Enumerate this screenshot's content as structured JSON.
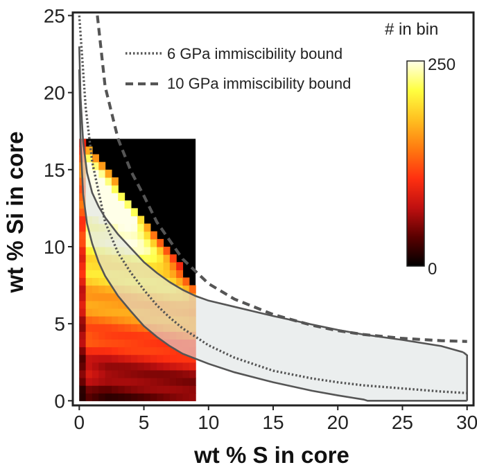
{
  "chart_data": {
    "type": "heatmap",
    "xlabel": "wt % S in core",
    "ylabel": "wt % Si in core",
    "xlim": [
      -0.5,
      30.5
    ],
    "ylim": [
      -0.3,
      25.2
    ],
    "xticks": [
      0,
      5,
      10,
      15,
      20,
      25,
      30
    ],
    "yticks": [
      0,
      5,
      10,
      15,
      20,
      25
    ],
    "heatmap": {
      "x_range": [
        0,
        9
      ],
      "y_range": [
        0,
        17
      ],
      "bin_width": 0.5,
      "bin_height": 0.5,
      "peak_location": {
        "s": 5.0,
        "si": 14.0
      },
      "colorbar": {
        "label": "# in bin",
        "min": 0,
        "max": 250,
        "min_label": "0",
        "max_label": "250",
        "colormap": [
          "#000000",
          "#5a0000",
          "#c01010",
          "#ff3010",
          "#ff7a10",
          "#ffc020",
          "#ffff40",
          "#ffffe8"
        ]
      }
    },
    "series": [
      {
        "name": "6 GPa immiscibility bound",
        "style": "dotted",
        "color": "#555555",
        "x": [
          0,
          0.5,
          1,
          2,
          3,
          4,
          5,
          6,
          7,
          8,
          10,
          12,
          15,
          18,
          20,
          22,
          25,
          28,
          30
        ],
        "y": [
          25,
          19,
          15.5,
          11.6,
          9.6,
          8.3,
          7.2,
          6.2,
          5.4,
          4.7,
          3.6,
          2.8,
          1.95,
          1.45,
          1.2,
          1.0,
          0.8,
          0.6,
          0.5
        ]
      },
      {
        "name": "10 GPa immiscibility bound",
        "style": "dashed",
        "color": "#555555",
        "x": [
          1.4,
          2,
          3,
          4,
          5,
          6,
          8,
          10,
          12,
          15,
          18,
          20,
          22,
          25,
          28,
          30
        ],
        "y": [
          25,
          20.4,
          17.0,
          14.9,
          13.3,
          11.6,
          9.2,
          7.6,
          6.6,
          5.6,
          4.9,
          4.55,
          4.3,
          4.05,
          3.9,
          3.85
        ]
      }
    ],
    "shaded_region": {
      "name": "overlap region",
      "fill": "#dde2e2",
      "upper": {
        "x": [
          0,
          0.1,
          0.3,
          0.6,
          1,
          1.5,
          2,
          3,
          4,
          5,
          6,
          7,
          8,
          9,
          10,
          12,
          15,
          18,
          20,
          22,
          25,
          28,
          29.7
        ],
        "y": [
          23.0,
          19.7,
          16.8,
          14.8,
          13.5,
          12.6,
          11.9,
          10.8,
          9.9,
          9.0,
          8.3,
          7.7,
          7.2,
          6.8,
          6.5,
          6.1,
          5.5,
          4.95,
          4.6,
          4.3,
          3.95,
          3.55,
          3.15
        ]
      },
      "lower": {
        "x": [
          0,
          0.1,
          0.3,
          0.6,
          1,
          1.5,
          2,
          3,
          4,
          5,
          6,
          7,
          8,
          10,
          12,
          15,
          18,
          20,
          22,
          22.3,
          30
        ],
        "y": [
          21.5,
          16.8,
          13.4,
          11.5,
          10.2,
          9.0,
          8.1,
          6.8,
          5.8,
          4.85,
          4.15,
          3.55,
          3.05,
          2.4,
          1.85,
          1.2,
          0.65,
          0.35,
          0.08,
          0,
          0
        ]
      },
      "right_edge_x": 30
    }
  }
}
